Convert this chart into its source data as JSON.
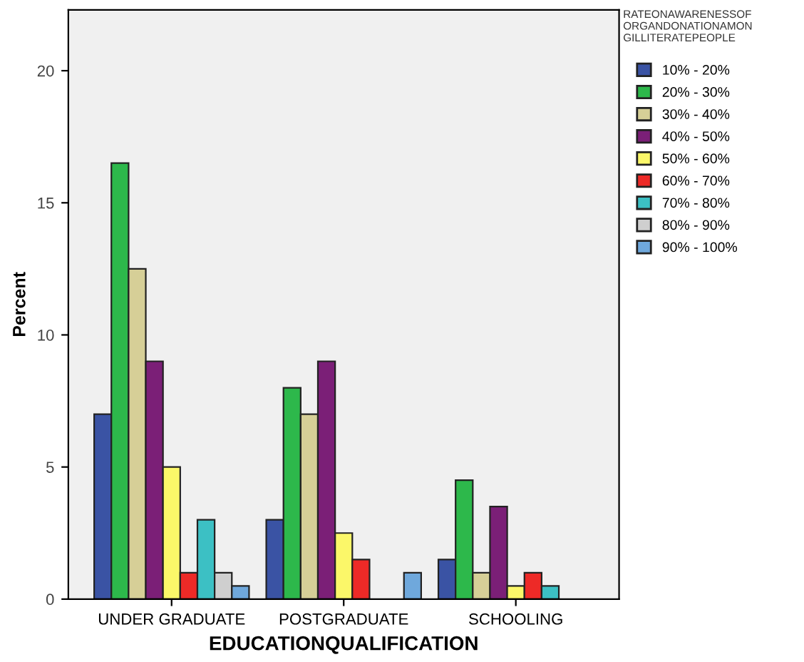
{
  "chart_data": {
    "type": "bar",
    "xlabel": "EDUCATIONQUALIFICATION",
    "ylabel": "Percent",
    "legend_title": "RATEONAWARENESSOFORGANDONATIONAMONGILLITERATEPEOPLE",
    "categories": [
      "UNDER GRADUATE",
      "POSTGRADUATE",
      "SCHOOLING"
    ],
    "series": [
      {
        "name": "10% - 20%",
        "color": "#3a53a4",
        "values": [
          7,
          3,
          1.5
        ]
      },
      {
        "name": "20% - 30%",
        "color": "#2db84b",
        "values": [
          16.5,
          8,
          4.5
        ]
      },
      {
        "name": "30% - 40%",
        "color": "#d6cf97",
        "values": [
          12.5,
          7,
          1
        ]
      },
      {
        "name": "40% - 50%",
        "color": "#7b1f77",
        "values": [
          9,
          9,
          3.5
        ]
      },
      {
        "name": "50% - 60%",
        "color": "#fbf769",
        "values": [
          5,
          2.5,
          0.5
        ]
      },
      {
        "name": "60% - 70%",
        "color": "#ed2a27",
        "values": [
          1,
          1.5,
          1
        ]
      },
      {
        "name": "70% - 80%",
        "color": "#3cc0c4",
        "values": [
          3,
          null,
          0.5
        ]
      },
      {
        "name": "80% - 90%",
        "color": "#cfcfcf",
        "values": [
          1,
          null,
          null
        ]
      },
      {
        "name": "90% - 100%",
        "color": "#6fa8dc",
        "values": [
          0.5,
          1,
          null
        ]
      }
    ],
    "ylim": [
      0,
      22.3
    ],
    "yticks": [
      0,
      5,
      10,
      15,
      20
    ],
    "grid": false,
    "legend": "right"
  }
}
